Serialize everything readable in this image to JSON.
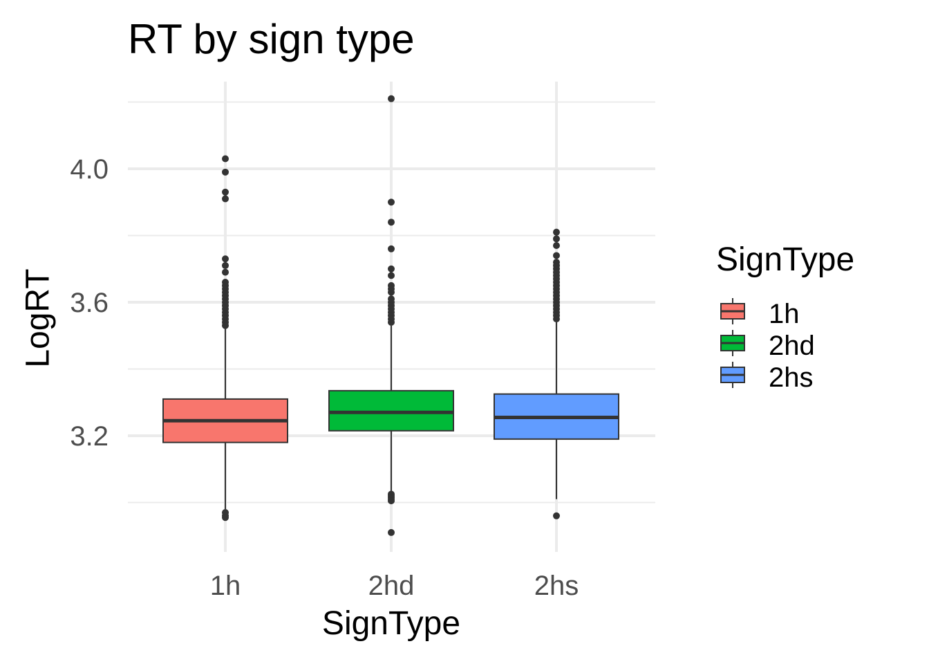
{
  "chart_data": {
    "type": "boxplot",
    "title": "RT by sign type",
    "xlabel": "SignType",
    "ylabel": "LogRT",
    "ylim": [
      2.84,
      4.25
    ],
    "y_ticks": [
      3.2,
      3.6,
      4.0
    ],
    "y_tick_labels": [
      "3.2",
      "3.6",
      "4.0"
    ],
    "grid": true,
    "legend": {
      "title": "SignType",
      "position": "right"
    },
    "categories": [
      "1h",
      "2hd",
      "2hs"
    ],
    "colors": [
      "#F8766D",
      "#00BA38",
      "#619CFF"
    ],
    "boxes": [
      {
        "name": "1h",
        "min": 2.98,
        "q1": 3.18,
        "median": 3.245,
        "q3": 3.31,
        "max": 3.52,
        "outliers": [
          4.03,
          3.99,
          3.93,
          3.91,
          3.73,
          3.71,
          3.69,
          3.66,
          3.65,
          3.64,
          3.63,
          3.62,
          3.61,
          3.6,
          3.59,
          3.58,
          3.57,
          3.56,
          3.55,
          3.54,
          3.53,
          2.97,
          2.96,
          2.955
        ]
      },
      {
        "name": "2hd",
        "min": 3.03,
        "q1": 3.215,
        "median": 3.27,
        "q3": 3.335,
        "max": 3.53,
        "outliers": [
          4.21,
          3.9,
          3.84,
          3.76,
          3.7,
          3.68,
          3.65,
          3.64,
          3.63,
          3.61,
          3.6,
          3.59,
          3.58,
          3.57,
          3.56,
          3.55,
          3.54,
          3.025,
          3.02,
          3.015,
          3.01,
          3.005,
          2.91
        ]
      },
      {
        "name": "2hs",
        "min": 3.01,
        "q1": 3.19,
        "median": 3.255,
        "q3": 3.325,
        "max": 3.54,
        "outliers": [
          3.81,
          3.79,
          3.77,
          3.74,
          3.72,
          3.71,
          3.7,
          3.69,
          3.68,
          3.67,
          3.66,
          3.65,
          3.64,
          3.63,
          3.62,
          3.61,
          3.6,
          3.59,
          3.58,
          3.57,
          3.56,
          3.55,
          2.96
        ]
      }
    ]
  }
}
